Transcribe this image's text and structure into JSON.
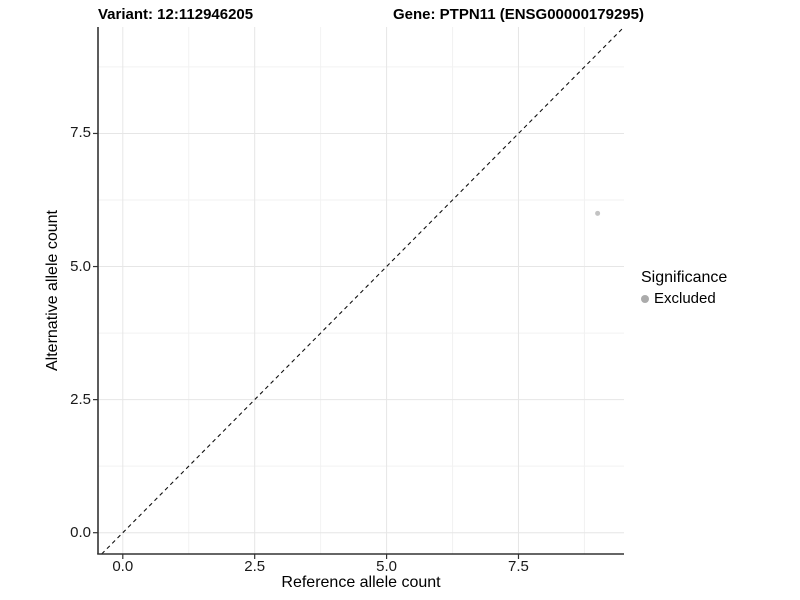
{
  "figure": {
    "title_left": "Variant: 12:112946205",
    "title_right": "Gene: PTPN11 (ENSG00000179295)"
  },
  "chart_data": {
    "type": "scatter",
    "titles": [
      "Variant: 12:112946205",
      "Gene: PTPN11 (ENSG00000179295)"
    ],
    "xlabel": "Reference allele count",
    "ylabel": "Alternative allele count",
    "xlim": [
      -0.47,
      9.5
    ],
    "ylim": [
      -0.4,
      9.5
    ],
    "xticks": {
      "values": [
        0,
        2.5,
        5,
        7.5
      ],
      "labels": [
        "0.0",
        "2.5",
        "5.0",
        "7.5"
      ]
    },
    "yticks": {
      "values": [
        0,
        2.5,
        5,
        7.5
      ],
      "labels": [
        "0.0",
        "2.5",
        "5.0",
        "7.5"
      ]
    },
    "minor_gridlines": [
      1.25,
      3.75,
      6.25,
      8.75
    ],
    "grid": "major+minor",
    "series": [
      {
        "name": "Excluded",
        "color": "#c3c3c3",
        "marker_radius": 2.5,
        "points": [
          [
            9,
            6
          ]
        ]
      }
    ],
    "identity_line": {
      "type": "y=x",
      "style": "dashed",
      "color": "#111111",
      "dash": [
        4,
        3.5
      ]
    },
    "legend": {
      "title": "Significance",
      "position": "right",
      "entries": [
        {
          "label": "Excluded",
          "color": "#ababab"
        }
      ]
    },
    "colors": {
      "background": "#ffffff",
      "grid_major": "#e6e6e6",
      "grid_minor": "#f2f2f2",
      "axis_line": "#333333",
      "tick_text": "#1a1a1a"
    }
  }
}
